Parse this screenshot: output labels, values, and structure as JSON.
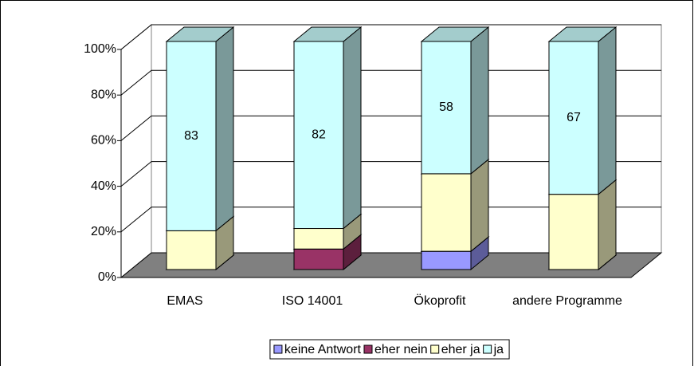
{
  "chart_data": {
    "type": "bar3d_stacked_percent",
    "categories": [
      "EMAS",
      "ISO 14001",
      "Ökoprofit",
      "andere Programme"
    ],
    "series": [
      {
        "name": "keine Antwort",
        "color": "#9999ff",
        "values": [
          0,
          0,
          8,
          0
        ]
      },
      {
        "name": "eher nein",
        "color": "#993366",
        "values": [
          0,
          9,
          0,
          0
        ]
      },
      {
        "name": "eher ja",
        "color": "#ffffcc",
        "values": [
          17,
          9,
          34,
          33
        ]
      },
      {
        "name": "ja",
        "color": "#ccffff",
        "values": [
          83,
          82,
          58,
          67
        ],
        "labels": true
      }
    ],
    "ylim": [
      0,
      100
    ],
    "yticks": [
      {
        "value": 0,
        "label": "0%"
      },
      {
        "value": 20,
        "label": "20%"
      },
      {
        "value": 40,
        "label": "40%"
      },
      {
        "value": 60,
        "label": "60%"
      },
      {
        "value": 80,
        "label": "80%"
      },
      {
        "value": 100,
        "label": "100%"
      }
    ],
    "grid": true,
    "legend": "bottom"
  }
}
